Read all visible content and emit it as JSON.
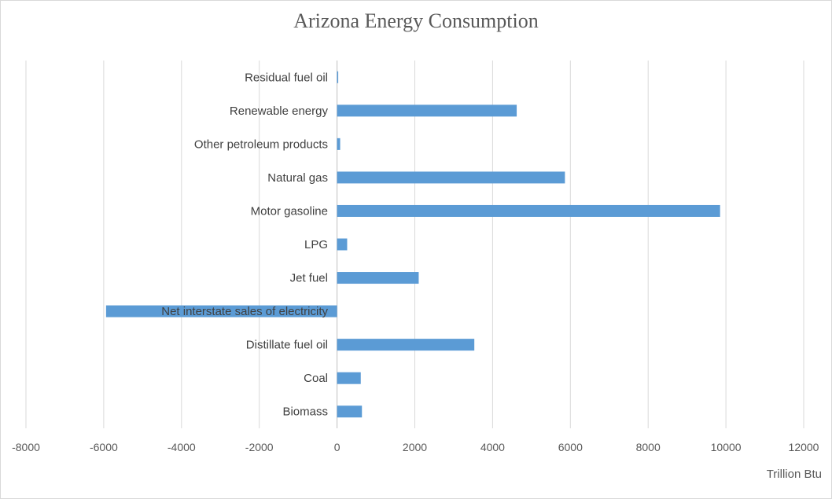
{
  "chart_data": {
    "type": "bar",
    "orientation": "horizontal",
    "title": "Arizona Energy Consumption",
    "xlabel": "Trillion Btu",
    "ylabel": "",
    "categories": [
      "Biomass",
      "Coal",
      "Distillate fuel oil",
      "Net interstate sales of electricity",
      "Jet fuel",
      "LPG",
      "Motor gasoline",
      "Natural gas",
      "Other petroleum products",
      "Renewable energy",
      "Residual fuel oil"
    ],
    "values": [
      640,
      610,
      3530,
      -5940,
      2100,
      260,
      9850,
      5860,
      80,
      4620,
      30
    ],
    "xlim": [
      -8000,
      12000
    ],
    "xticks": [
      -8000,
      -6000,
      -4000,
      -2000,
      0,
      2000,
      4000,
      6000,
      8000,
      10000,
      12000
    ],
    "grid": true,
    "legend": "none",
    "colors": {
      "bar": "#5b9bd5",
      "grid": "#d9d9d9",
      "axis": "#bfbfbf"
    }
  }
}
